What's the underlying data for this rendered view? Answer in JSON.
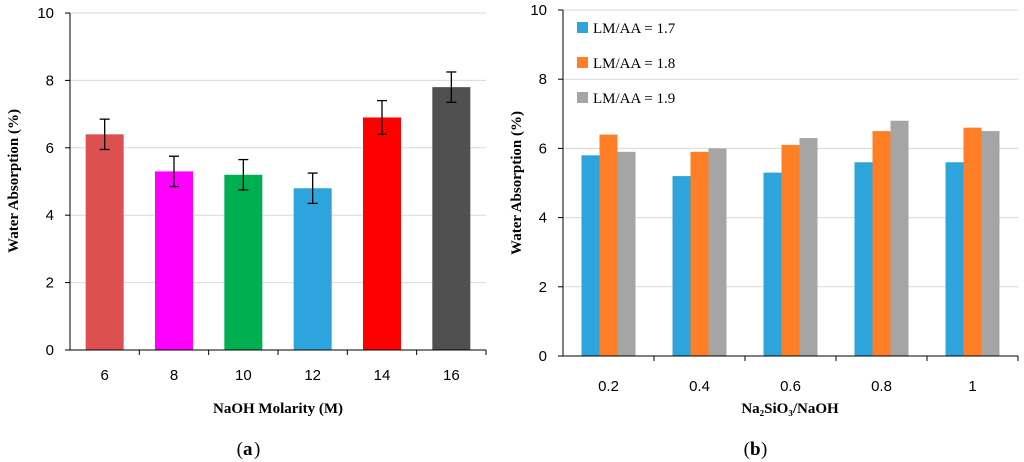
{
  "chart_data": [
    {
      "type": "bar",
      "panel_label": "a",
      "categories": [
        "6",
        "8",
        "10",
        "12",
        "14",
        "16"
      ],
      "values": [
        6.4,
        5.3,
        5.2,
        4.8,
        6.9,
        7.8
      ],
      "errors": [
        0.45,
        0.45,
        0.45,
        0.45,
        0.5,
        0.45
      ],
      "bar_colors": [
        "#dc5050",
        "#ff00ff",
        "#00b050",
        "#2ea4dc",
        "#ff0000",
        "#505050"
      ],
      "xlabel": "NaOH Molarity (M)",
      "ylabel": "Water Absorption (%)",
      "ylim": [
        0,
        10
      ],
      "yticks": [
        0,
        2,
        4,
        6,
        8,
        10
      ]
    },
    {
      "type": "bar",
      "panel_label": "b",
      "categories": [
        "0.2",
        "0.4",
        "0.6",
        "0.8",
        "1"
      ],
      "series": [
        {
          "name": "LM/AA = 1.7",
          "color": "#2ea4dc",
          "values": [
            5.8,
            5.2,
            5.3,
            5.6,
            5.6
          ]
        },
        {
          "name": "LM/AA = 1.8",
          "color": "#ff7f27",
          "values": [
            6.4,
            5.9,
            6.1,
            6.5,
            6.6
          ]
        },
        {
          "name": "LM/AA = 1.9",
          "color": "#a5a5a5",
          "values": [
            5.9,
            6.0,
            6.3,
            6.8,
            6.5
          ]
        }
      ],
      "xlabel": "Na₂SiO₃/NaOH",
      "ylabel": "Water Absorption (%)",
      "ylim": [
        0,
        10
      ],
      "yticks": [
        0,
        2,
        4,
        6,
        8,
        10
      ],
      "legend_position": "top-left"
    }
  ]
}
